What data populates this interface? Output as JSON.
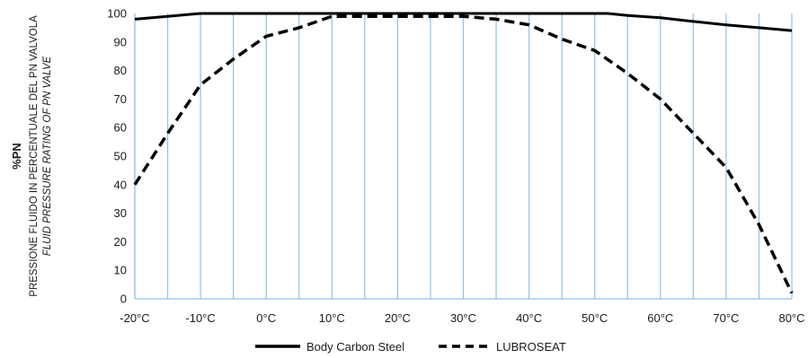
{
  "chart_data": {
    "type": "line",
    "title": "",
    "ylabel": {
      "main": "%PN",
      "line2": "PRESSIONE FLUIDO IN PERCENTUALE DEL PN VALVOLA",
      "line3": "FLUID PRESSURE RATING OF PN VALVE"
    },
    "xlabel": "",
    "x_ticks": [
      "-20°C",
      "-10°C",
      "0°C",
      "10°C",
      "20°C",
      "30°C",
      "40°C",
      "50°C",
      "60°C",
      "70°C",
      "80°C"
    ],
    "y_ticks": [
      "0",
      "10",
      "20",
      "30",
      "40",
      "50",
      "60",
      "70",
      "80",
      "90",
      "100"
    ],
    "xlim": [
      -20,
      80
    ],
    "ylim": [
      0,
      100
    ],
    "grid": "vertical lines every 5°C",
    "legend_position": "bottom-center",
    "series": [
      {
        "name": "Body Carbon Steel",
        "style": "solid",
        "color": "#000000",
        "x": [
          -20,
          -15,
          -12,
          -10,
          0,
          10,
          20,
          30,
          40,
          50,
          52,
          55,
          60,
          65,
          70,
          75,
          80
        ],
        "y": [
          98,
          99,
          99.6,
          100,
          100,
          100,
          100,
          100,
          100,
          100,
          100,
          99.3,
          98.5,
          97.2,
          96,
          95,
          94
        ]
      },
      {
        "name": "LUBROSEAT",
        "style": "dashed",
        "color": "#000000",
        "x": [
          -20,
          -15,
          -10,
          -5,
          0,
          5,
          10,
          20,
          30,
          35,
          40,
          45,
          50,
          55,
          60,
          65,
          70,
          75,
          80
        ],
        "y": [
          40,
          58,
          75,
          84,
          92,
          95,
          99,
          99,
          99,
          98,
          96,
          91,
          87,
          79,
          70,
          58,
          46,
          26,
          2
        ]
      }
    ]
  }
}
